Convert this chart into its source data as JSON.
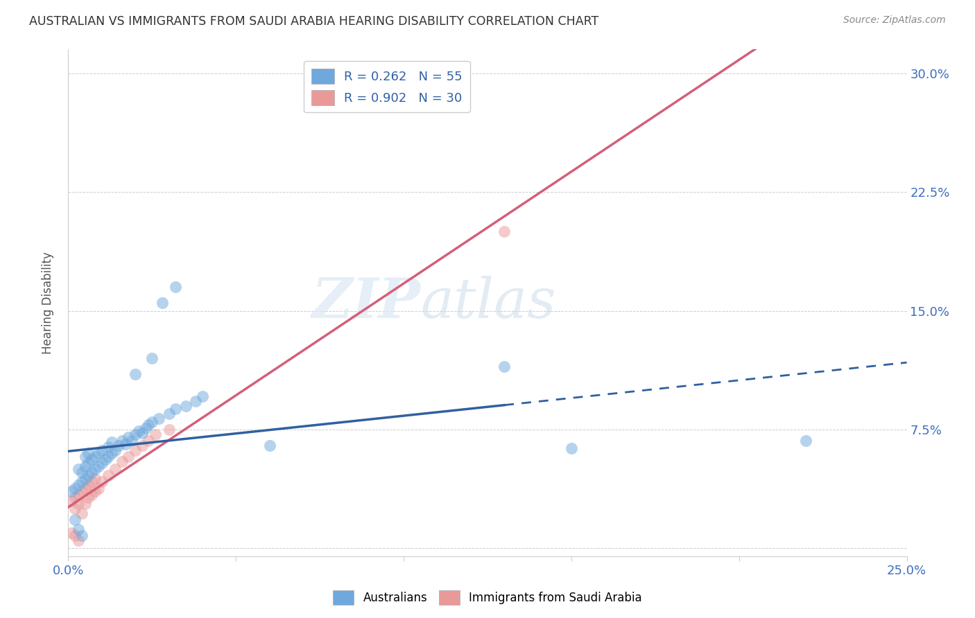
{
  "title": "AUSTRALIAN VS IMMIGRANTS FROM SAUDI ARABIA HEARING DISABILITY CORRELATION CHART",
  "source": "Source: ZipAtlas.com",
  "ylabel": "Hearing Disability",
  "xlim": [
    0.0,
    0.25
  ],
  "ylim": [
    -0.005,
    0.315
  ],
  "xticks": [
    0.0,
    0.05,
    0.1,
    0.15,
    0.2,
    0.25
  ],
  "xtick_labels": [
    "0.0%",
    "",
    "",
    "",
    "",
    "25.0%"
  ],
  "yticks": [
    0.0,
    0.075,
    0.15,
    0.225,
    0.3
  ],
  "ytick_labels": [
    "",
    "7.5%",
    "15.0%",
    "22.5%",
    "30.0%"
  ],
  "legend_label1": "Australians",
  "legend_label2": "Immigrants from Saudi Arabia",
  "blue_color": "#6fa8dc",
  "pink_color": "#ea9999",
  "blue_line_color": "#3060a0",
  "pink_line_color": "#d45f7a",
  "blue_line_solid_end": 0.13,
  "blue_scatter": [
    [
      0.001,
      0.036
    ],
    [
      0.002,
      0.038
    ],
    [
      0.003,
      0.04
    ],
    [
      0.003,
      0.05
    ],
    [
      0.004,
      0.042
    ],
    [
      0.004,
      0.048
    ],
    [
      0.005,
      0.044
    ],
    [
      0.005,
      0.052
    ],
    [
      0.005,
      0.058
    ],
    [
      0.006,
      0.046
    ],
    [
      0.006,
      0.054
    ],
    [
      0.006,
      0.06
    ],
    [
      0.007,
      0.048
    ],
    [
      0.007,
      0.056
    ],
    [
      0.008,
      0.05
    ],
    [
      0.008,
      0.058
    ],
    [
      0.009,
      0.052
    ],
    [
      0.009,
      0.06
    ],
    [
      0.01,
      0.054
    ],
    [
      0.01,
      0.062
    ],
    [
      0.011,
      0.056
    ],
    [
      0.012,
      0.058
    ],
    [
      0.012,
      0.064
    ],
    [
      0.013,
      0.06
    ],
    [
      0.013,
      0.067
    ],
    [
      0.014,
      0.062
    ],
    [
      0.015,
      0.065
    ],
    [
      0.016,
      0.068
    ],
    [
      0.017,
      0.066
    ],
    [
      0.018,
      0.07
    ],
    [
      0.019,
      0.068
    ],
    [
      0.02,
      0.072
    ],
    [
      0.021,
      0.074
    ],
    [
      0.022,
      0.073
    ],
    [
      0.023,
      0.076
    ],
    [
      0.024,
      0.078
    ],
    [
      0.025,
      0.08
    ],
    [
      0.027,
      0.082
    ],
    [
      0.03,
      0.085
    ],
    [
      0.032,
      0.088
    ],
    [
      0.035,
      0.09
    ],
    [
      0.038,
      0.093
    ],
    [
      0.04,
      0.096
    ],
    [
      0.02,
      0.11
    ],
    [
      0.025,
      0.12
    ],
    [
      0.028,
      0.155
    ],
    [
      0.032,
      0.165
    ],
    [
      0.06,
      0.065
    ],
    [
      0.13,
      0.115
    ],
    [
      0.15,
      0.063
    ],
    [
      0.22,
      0.068
    ],
    [
      0.002,
      0.018
    ],
    [
      0.003,
      0.012
    ],
    [
      0.004,
      0.008
    ]
  ],
  "pink_scatter": [
    [
      0.001,
      0.03
    ],
    [
      0.002,
      0.032
    ],
    [
      0.002,
      0.025
    ],
    [
      0.003,
      0.034
    ],
    [
      0.003,
      0.028
    ],
    [
      0.004,
      0.036
    ],
    [
      0.004,
      0.022
    ],
    [
      0.005,
      0.038
    ],
    [
      0.005,
      0.028
    ],
    [
      0.006,
      0.04
    ],
    [
      0.006,
      0.032
    ],
    [
      0.007,
      0.042
    ],
    [
      0.007,
      0.034
    ],
    [
      0.008,
      0.044
    ],
    [
      0.008,
      0.036
    ],
    [
      0.009,
      0.038
    ],
    [
      0.01,
      0.042
    ],
    [
      0.012,
      0.046
    ],
    [
      0.014,
      0.05
    ],
    [
      0.016,
      0.055
    ],
    [
      0.018,
      0.058
    ],
    [
      0.02,
      0.062
    ],
    [
      0.022,
      0.065
    ],
    [
      0.024,
      0.068
    ],
    [
      0.026,
      0.072
    ],
    [
      0.03,
      0.075
    ],
    [
      0.001,
      0.01
    ],
    [
      0.002,
      0.008
    ],
    [
      0.003,
      0.005
    ],
    [
      0.13,
      0.2
    ]
  ],
  "watermark_zip": "ZIP",
  "watermark_atlas": "atlas",
  "background_color": "#ffffff",
  "grid_color": "#cccccc"
}
